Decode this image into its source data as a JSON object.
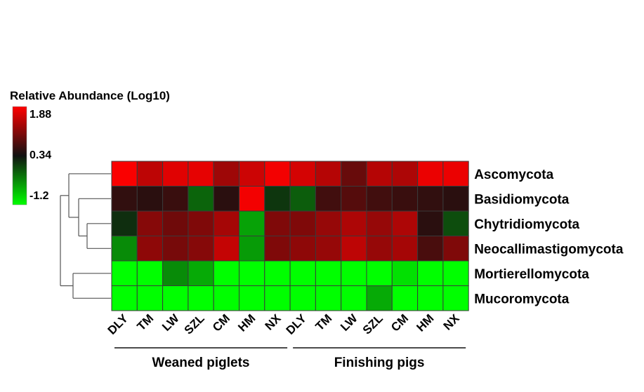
{
  "chart_data": {
    "type": "heatmap",
    "colorscale": {
      "title": "Relative Abundance (Log10)",
      "max": 1.88,
      "mid": 0.34,
      "min": -1.2,
      "tick_labels": [
        "1.88",
        "0.34",
        "-1.2"
      ],
      "colors": {
        "high": "#ff0000",
        "mid": "#111111",
        "low": "#00ff00"
      }
    },
    "columns": [
      "DLY",
      "TM",
      "LW",
      "SZL",
      "CM",
      "HM",
      "NX",
      "DLY",
      "TM",
      "LW",
      "SZL",
      "CM",
      "HM",
      "NX"
    ],
    "groups": [
      {
        "label": "Weaned piglets",
        "start": 0,
        "end": 6
      },
      {
        "label": "Finishing pigs",
        "start": 7,
        "end": 13
      }
    ],
    "rows": [
      "Ascomycota",
      "Basidiomycota",
      "Chytridiomycota",
      "Neocallimastigomycota",
      "Mortierellomycota",
      "Mucoromycota"
    ],
    "values": [
      [
        1.85,
        1.45,
        1.68,
        1.72,
        1.25,
        1.55,
        1.8,
        1.6,
        1.4,
        0.9,
        1.4,
        1.35,
        1.75,
        1.75
      ],
      [
        0.55,
        0.5,
        0.6,
        -0.2,
        0.5,
        1.8,
        0.1,
        -0.15,
        0.65,
        0.78,
        0.65,
        0.6,
        0.55,
        0.5
      ],
      [
        0.15,
        1.1,
        0.95,
        1.05,
        1.3,
        -0.6,
        1.05,
        1.05,
        1.2,
        1.35,
        1.2,
        1.35,
        0.5,
        -0.05
      ],
      [
        -0.45,
        1.15,
        1.0,
        1.1,
        1.5,
        -0.55,
        1.05,
        1.15,
        1.2,
        1.45,
        1.2,
        1.3,
        0.7,
        1.05
      ],
      [
        -1.2,
        -1.2,
        -0.45,
        -0.65,
        -1.2,
        -1.2,
        -1.2,
        -1.2,
        -1.2,
        -1.2,
        -1.2,
        -1.0,
        -1.2,
        -1.2
      ],
      [
        -1.2,
        -1.2,
        -1.2,
        -1.2,
        -1.2,
        -1.2,
        -1.2,
        -1.2,
        -1.2,
        -1.2,
        -0.65,
        -1.2,
        -1.2,
        -1.2
      ]
    ],
    "dendrogram": "rows"
  }
}
